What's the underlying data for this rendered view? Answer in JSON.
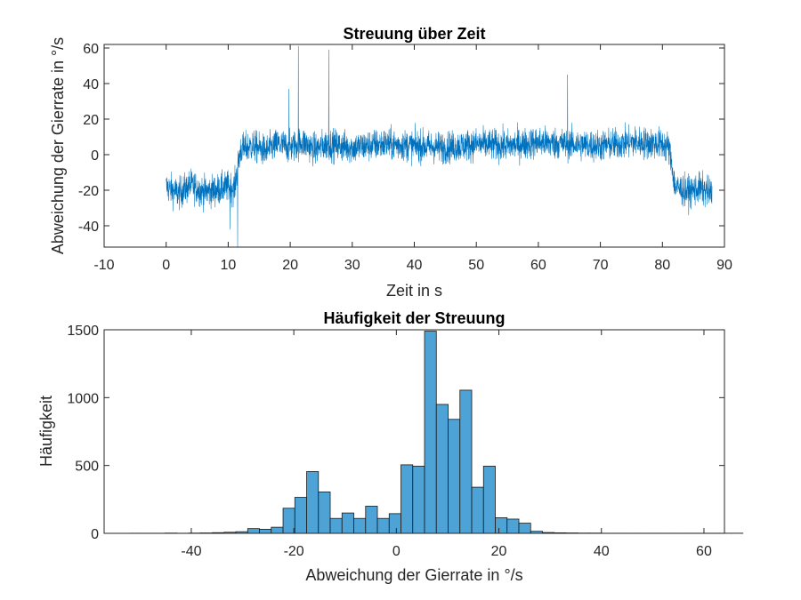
{
  "chart_data": [
    {
      "type": "line",
      "title": "Streuung über Zeit",
      "xlabel": "Zeit in s",
      "ylabel": "Abweichung der Gierrate in °/s",
      "xlim": [
        -10,
        90
      ],
      "ylim": [
        -52,
        62
      ],
      "xticks": [
        -10,
        0,
        10,
        20,
        30,
        40,
        50,
        60,
        70,
        80,
        90
      ],
      "yticks": [
        -40,
        -20,
        0,
        20,
        40,
        60
      ],
      "color": "#0072BD",
      "series": [
        {
          "name": "Abweichung",
          "x": [
            0,
            2,
            4,
            6,
            8,
            10,
            11,
            11.5,
            12,
            14,
            16,
            18,
            20,
            22,
            24,
            26,
            28,
            30,
            35,
            40,
            45,
            50,
            55,
            60,
            65,
            70,
            75,
            80,
            81,
            81.5,
            82,
            84,
            86,
            88
          ],
          "y": [
            -18,
            -22,
            -17,
            -21,
            -20,
            -18,
            -19,
            -8,
            3,
            5,
            2,
            6,
            4,
            7,
            3,
            6,
            5,
            4,
            6,
            5,
            4,
            6,
            5,
            7,
            6,
            5,
            7,
            6,
            4,
            -5,
            -18,
            -21,
            -19,
            -22
          ],
          "noise_amplitude": 8
        }
      ],
      "spikes": [
        {
          "x": 21.3,
          "y": 61
        },
        {
          "x": 26.2,
          "y": 59
        },
        {
          "x": 19.8,
          "y": 37
        },
        {
          "x": 64.7,
          "y": 45
        },
        {
          "x": 11.5,
          "y": -52
        },
        {
          "x": 10.3,
          "y": -42
        }
      ]
    },
    {
      "type": "bar",
      "title": "Häufigkeit der Streuung",
      "xlabel": "Abweichung der Gierrate in °/s",
      "ylabel": "Häufigkeit",
      "xlim": [
        -57,
        64
      ],
      "ylim": [
        0,
        1500
      ],
      "xticks": [
        -40,
        -20,
        0,
        20,
        40,
        60
      ],
      "yticks": [
        0,
        500,
        1000,
        1500
      ],
      "bin_start": -52,
      "bin_width": 2.3,
      "color": "#4DA3D6",
      "edge_color": "#1A1A1A",
      "values": [
        1,
        1,
        1,
        2,
        1,
        2,
        3,
        5,
        8,
        12,
        35,
        30,
        45,
        185,
        265,
        455,
        305,
        110,
        150,
        110,
        200,
        110,
        145,
        505,
        495,
        1490,
        950,
        840,
        1055,
        340,
        495,
        115,
        105,
        75,
        15,
        6,
        4,
        3,
        2,
        2,
        1,
        1,
        1,
        1,
        1,
        1,
        1,
        1,
        1,
        1,
        1,
        1
      ]
    }
  ]
}
